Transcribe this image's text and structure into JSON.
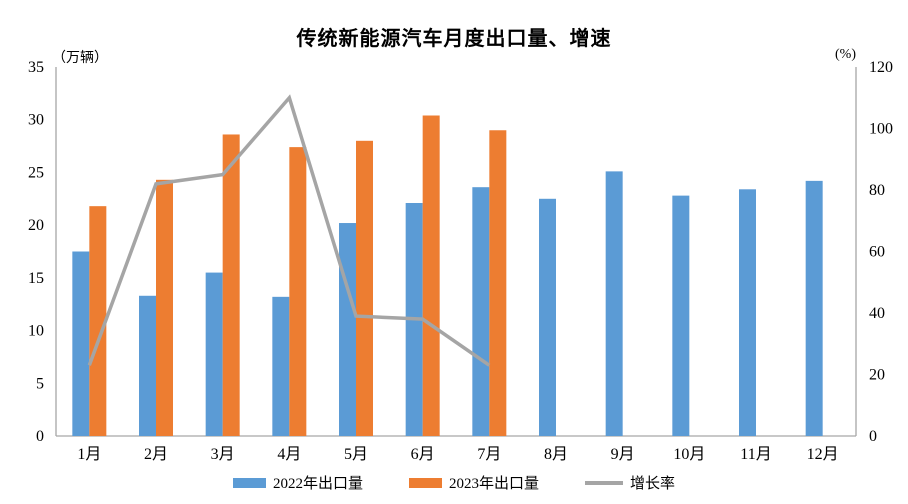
{
  "title": "传统新能源汽车月度出口量、增速",
  "left_axis_unit": "（万辆）",
  "right_axis_unit": "(%)",
  "legend": {
    "items": [
      {
        "label": "2022年出口量",
        "swatch": "bar",
        "color": "#5B9BD5"
      },
      {
        "label": "2023年出口量",
        "swatch": "bar",
        "color": "#ED7D31"
      },
      {
        "label": "增长率",
        "swatch": "line",
        "color": "#A5A5A5"
      }
    ],
    "position": "bottom"
  },
  "chart_data": {
    "type": "bar+line",
    "title": "传统新能源汽车月度出口量、增速",
    "categories": [
      "1月",
      "2月",
      "3月",
      "4月",
      "5月",
      "6月",
      "7月",
      "8月",
      "9月",
      "10月",
      "11月",
      "12月"
    ],
    "series": [
      {
        "name": "2022年出口量",
        "type": "bar",
        "axis": "left",
        "color": "#5B9BD5",
        "values": [
          17.5,
          13.3,
          15.5,
          13.2,
          20.2,
          22.1,
          23.6,
          22.5,
          25.1,
          22.8,
          23.4,
          24.2
        ]
      },
      {
        "name": "2023年出口量",
        "type": "bar",
        "axis": "left",
        "color": "#ED7D31",
        "values": [
          21.8,
          24.3,
          28.6,
          27.4,
          28.0,
          30.4,
          29.0
        ]
      },
      {
        "name": "增长率",
        "type": "line",
        "axis": "right",
        "color": "#A5A5A5",
        "values": [
          23,
          82,
          85,
          110,
          39,
          38,
          23
        ]
      }
    ],
    "left_axis": {
      "unit": "（万辆）",
      "ticks": [
        0,
        5,
        10,
        15,
        20,
        25,
        30,
        35
      ],
      "range": [
        0,
        35
      ]
    },
    "right_axis": {
      "unit": "(%)",
      "ticks": [
        0,
        20,
        40,
        60,
        80,
        100,
        120
      ],
      "range": [
        0,
        120
      ]
    },
    "grid": false,
    "axis_color": "#A6A6A6",
    "legend_position": "bottom"
  }
}
